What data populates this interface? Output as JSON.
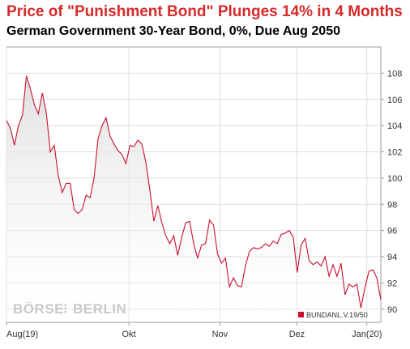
{
  "header": {
    "title": "Price of \"Punishment Bond\" Plunges 14% in 4 Months",
    "subtitle": "German Government 30-Year Bond, 0%, Due Aug 2050"
  },
  "watermark": {
    "left": "BÖRSE",
    "right": "BERLIN"
  },
  "colors": {
    "line": "#c8102e",
    "grid": "#dddddd",
    "axis": "#999999",
    "fill_top": "#dcdcdc"
  },
  "chart_data": {
    "type": "area",
    "x_unit": "trading day index (Aug 2019 – Jan 2020)",
    "ylim": [
      89,
      110
    ],
    "xlim": [
      0,
      107
    ],
    "y_ticks": [
      90,
      92,
      94,
      96,
      98,
      100,
      102,
      104,
      106,
      108
    ],
    "x_tick_labels": [
      {
        "label": "Aug(19)",
        "x": 0
      },
      {
        "label": "Okt",
        "x": 35
      },
      {
        "label": "Nov",
        "x": 61
      },
      {
        "label": "Dez",
        "x": 83
      },
      {
        "label": "Jan(20)",
        "x": 103
      }
    ],
    "grid": true,
    "legend": {
      "position": "bottom-right",
      "label": "BUNDANL.V.19/50"
    },
    "series": [
      {
        "name": "BUNDANL.V.19/50",
        "values": [
          104.4,
          103.8,
          102.5,
          104.0,
          104.8,
          107.8,
          106.8,
          105.6,
          104.9,
          106.5,
          105.0,
          102.0,
          102.5,
          100.2,
          98.9,
          99.6,
          99.6,
          97.6,
          97.3,
          97.6,
          98.7,
          98.5,
          100.0,
          103.0,
          104.0,
          104.6,
          103.2,
          102.6,
          102.1,
          101.8,
          101.1,
          102.5,
          102.4,
          102.9,
          102.6,
          101.2,
          99.1,
          96.7,
          97.9,
          96.6,
          95.6,
          95.0,
          95.6,
          94.1,
          95.5,
          96.6,
          96.7,
          95.0,
          93.9,
          94.9,
          95.0,
          96.8,
          96.4,
          94.2,
          93.5,
          93.9,
          91.7,
          92.4,
          91.8,
          91.7,
          93.3,
          94.4,
          94.7,
          94.6,
          94.7,
          95.0,
          94.8,
          95.2,
          95.0,
          95.7,
          95.8,
          96.0,
          95.5,
          92.8,
          94.9,
          95.4,
          93.7,
          93.4,
          93.6,
          93.3,
          94.0,
          92.5,
          93.4,
          92.5,
          93.5,
          91.1,
          91.9,
          91.7,
          91.9,
          90.1,
          91.6,
          92.9,
          93.0,
          92.4,
          90.7
        ]
      }
    ]
  }
}
